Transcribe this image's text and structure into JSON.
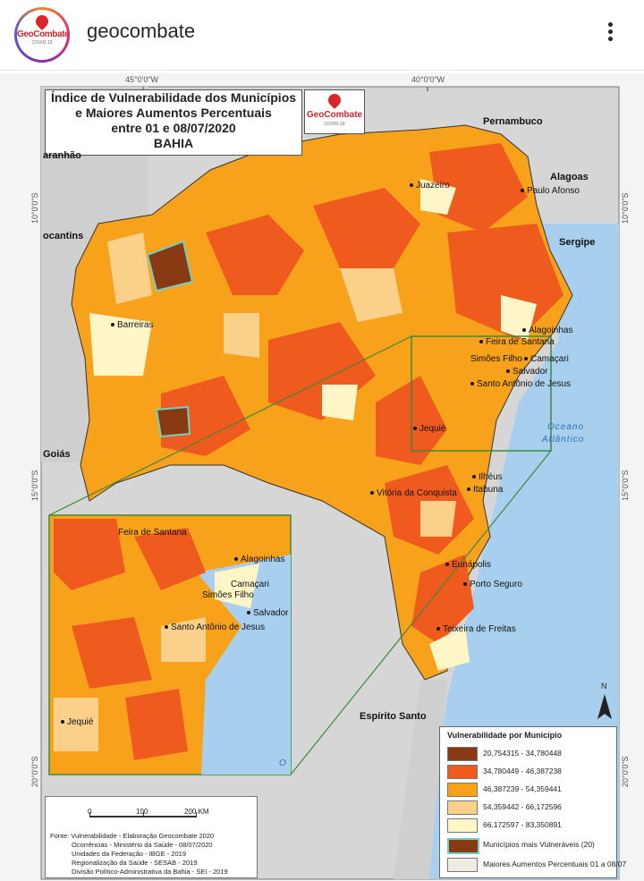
{
  "post": {
    "username": "geocombate",
    "avatar_brand": "GeoCombate",
    "avatar_sub": "COVID-19"
  },
  "map": {
    "title_lines": [
      "Índice de Vulnerabilidade dos Municípios",
      "e Maiores Aumentos Percentuais",
      "entre 01 e 08/07/2020",
      "BAHIA"
    ],
    "logo_brand": "GeoCombate",
    "logo_sub": "COVID-19",
    "coords": {
      "top_left": "45°0'0\"W",
      "top_right": "40°0'0\"W",
      "left_10": "10°0'0\"S",
      "left_15": "15°0'0\"S",
      "left_20": "20°0'0\"S",
      "right_10": "10°0'0\"S",
      "right_15": "15°0'0\"S",
      "right_20": "20°0'0\"S"
    },
    "regions": {
      "pernambuco": "Pernambuco",
      "alagoas": "Alagoas",
      "sergipe": "Sergipe",
      "tocantins": "ocantins",
      "maranhao": "aranhão",
      "goias": "Goiás",
      "espirito_santo": "Espírito Santo"
    },
    "ocean_line1": "Oceano",
    "ocean_line2": "Atlântico",
    "cities": {
      "juazeiro": "Juazeiro",
      "paulo_afonso": "Paulo Afonso",
      "barreiras": "Barreiras",
      "alagoinhas": "Alagoinhas",
      "feira": "Feira de Santana",
      "simoes": "Simões Filho",
      "camacari": "Camaçari",
      "salvador": "Salvador",
      "santo_antonio": "Santo Antônio de Jesus",
      "jequie": "Jequié",
      "ilheus": "Ilhéus",
      "itabuna": "Itabuna",
      "vitoria": "Vitória da Conquista",
      "eunapolis": "Eunápolis",
      "porto_seguro": "Porto Seguro",
      "teixeira": "Teixeira de Freitas"
    },
    "inset_cities": {
      "feira": "Feira de Santana",
      "alagoinhas": "Alagoinhas",
      "camacari": "Camaçari",
      "simoes": "Simões Filho",
      "salvador": "Salvador",
      "santo_antonio": "Santo Antônio de Jesus",
      "jequie": "Jequié",
      "ocean_fragment": "O"
    },
    "north": "N"
  },
  "legend": {
    "title": "Vulnerabilidade por Município",
    "items": [
      {
        "label": "20,754315 - 34,780448",
        "color": "#8a3a12"
      },
      {
        "label": "34,780449 - 46,387238",
        "color": "#ef5a1e"
      },
      {
        "label": "46,387239 - 54,359441",
        "color": "#f7a21a"
      },
      {
        "label": "54,359442 - 66,172596",
        "color": "#fbd08a"
      },
      {
        "label": "66,172597 - 83,350891",
        "color": "#fff6c8"
      },
      {
        "label": "Municípios mais Vulneráveis (20)",
        "color": "#8a3a12"
      },
      {
        "label": "Maiores Aumentos Percentuais 01 a 08/07",
        "color": "#f0ece4"
      }
    ]
  },
  "scale": {
    "l0": "0",
    "l1": "100",
    "l2": "200 KM"
  },
  "source_lines": [
    "Fonte: Vulnerabilidade - Elaboração Geocombate 2020",
    "Ocorrências - Ministério da Saúde - 08/07/2020",
    "Unidades da Federação - IBGE - 2019",
    "Regionalização da Saúde - SESAB - 2019",
    "Divisão Político-Administrativa da Bahia - SEI - 2019"
  ]
}
